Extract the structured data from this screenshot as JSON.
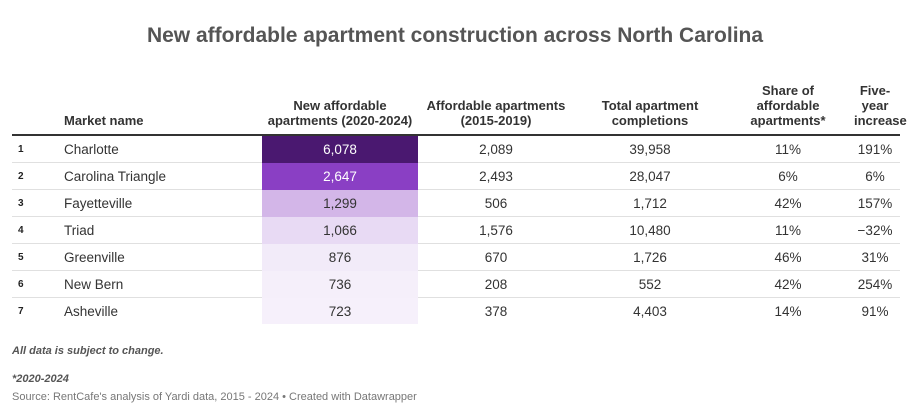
{
  "title": "New affordable apartment construction across North Carolina",
  "header": {
    "market": "Market name",
    "new_affordable": "New affordable apartments (2020-2024)",
    "affordable_prev": "Affordable apartments (2015-2019)",
    "total": "Total apartment completions",
    "share": "Share of affordable apartments*",
    "increase": "Five-year increase"
  },
  "rows": [
    {
      "rank": "1",
      "market": "Charlotte",
      "new": "6,078",
      "prev": "2,089",
      "total": "39,958",
      "share": "11%",
      "increase": "191%"
    },
    {
      "rank": "2",
      "market": "Carolina Triangle",
      "new": "2,647",
      "prev": "2,493",
      "total": "28,047",
      "share": "6%",
      "increase": "6%"
    },
    {
      "rank": "3",
      "market": "Fayetteville",
      "new": "1,299",
      "prev": "506",
      "total": "1,712",
      "share": "42%",
      "increase": "157%"
    },
    {
      "rank": "4",
      "market": "Triad",
      "new": "1,066",
      "prev": "1,576",
      "total": "10,480",
      "share": "11%",
      "increase": "−32%"
    },
    {
      "rank": "5",
      "market": "Greenville",
      "new": "876",
      "prev": "670",
      "total": "1,726",
      "share": "46%",
      "increase": "31%"
    },
    {
      "rank": "6",
      "market": "New Bern",
      "new": "736",
      "prev": "208",
      "total": "552",
      "share": "42%",
      "increase": "254%"
    },
    {
      "rank": "7",
      "market": "Asheville",
      "new": "723",
      "prev": "378",
      "total": "4,403",
      "share": "14%",
      "increase": "91%"
    }
  ],
  "heat_colors": [
    "#4a1870",
    "#8a3fc4",
    "#d3b6e8",
    "#e8daf4",
    "#f2ebf9",
    "#f5effa",
    "#f6f0fb"
  ],
  "heat_text_colors": [
    "#ffffff",
    "#ffffff",
    "#333333",
    "#333333",
    "#333333",
    "#333333",
    "#333333"
  ],
  "notes": {
    "disclaimer": "All data is subject to change.",
    "footnote": "*2020-2024",
    "source": "Source: RentCafe's analysis of Yardi data, 2015 - 2024 • Created with Datawrapper"
  },
  "chart_data": {
    "type": "table",
    "title": "New affordable apartment construction across North Carolina",
    "columns": [
      "Market name",
      "New affordable apartments (2020-2024)",
      "Affordable apartments (2015-2019)",
      "Total apartment completions",
      "Share of affordable apartments*",
      "Five-year increase"
    ],
    "categories": [
      "Charlotte",
      "Carolina Triangle",
      "Fayetteville",
      "Triad",
      "Greenville",
      "New Bern",
      "Asheville"
    ],
    "series": [
      {
        "name": "New affordable apartments (2020-2024)",
        "values": [
          6078,
          2647,
          1299,
          1066,
          876,
          736,
          723
        ]
      },
      {
        "name": "Affordable apartments (2015-2019)",
        "values": [
          2089,
          2493,
          506,
          1576,
          670,
          208,
          378
        ]
      },
      {
        "name": "Total apartment completions",
        "values": [
          39958,
          28047,
          1712,
          10480,
          1726,
          552,
          4403
        ]
      },
      {
        "name": "Share of affordable apartments*",
        "values": [
          11,
          6,
          42,
          11,
          46,
          42,
          14
        ]
      },
      {
        "name": "Five-year increase",
        "values": [
          191,
          6,
          157,
          -32,
          31,
          254,
          91
        ]
      }
    ]
  }
}
